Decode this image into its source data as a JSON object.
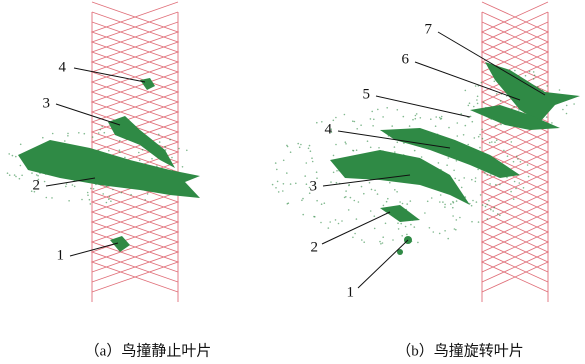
{
  "panels": [
    {
      "labels": [
        "4",
        "3",
        "2",
        "1"
      ],
      "caption": "（a）鸟撞静止叶片"
    },
    {
      "labels": [
        "7",
        "6",
        "5",
        "4",
        "3",
        "2",
        "1"
      ],
      "caption": "（b）鸟撞旋转叶片"
    }
  ]
}
